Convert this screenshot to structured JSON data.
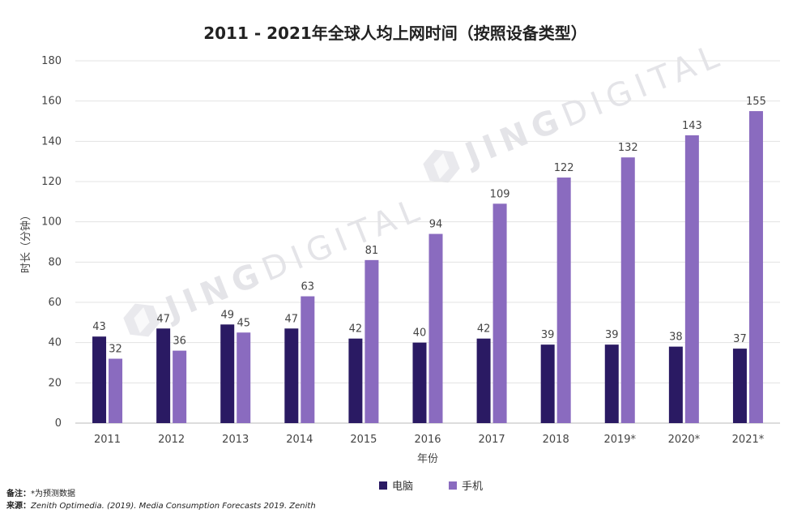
{
  "chart_data": {
    "type": "bar",
    "title": "2011 - 2021年全球人均上网时间（按照设备类型）",
    "xlabel": "年份",
    "ylabel": "时长（分钟）",
    "ylim": [
      0,
      180
    ],
    "yticks": [
      0,
      20,
      40,
      60,
      80,
      100,
      120,
      140,
      160,
      180
    ],
    "grid": true,
    "legend_position": "bottom",
    "categories": [
      "2011",
      "2012",
      "2013",
      "2014",
      "2015",
      "2016",
      "2017",
      "2018",
      "2019*",
      "2020*",
      "2021*"
    ],
    "series": [
      {
        "name": "电脑",
        "color": "#2a1a63",
        "values": [
          43,
          47,
          49,
          47,
          42,
          40,
          42,
          39,
          39,
          38,
          37
        ]
      },
      {
        "name": "手机",
        "color": "#8a6bbf",
        "values": [
          32,
          36,
          45,
          63,
          81,
          94,
          109,
          122,
          132,
          143,
          155
        ]
      }
    ]
  },
  "watermark": {
    "text": "JINGDIGITAL",
    "bold_part": "JING",
    "light_part": "DIGITAL"
  },
  "footnotes": {
    "note_label": "备注：",
    "note_text": "*为预测数据",
    "source_label": "来源：",
    "source_text": "Zenith Optimedia. (2019). Media Consumption Forecasts 2019. Zenith"
  }
}
